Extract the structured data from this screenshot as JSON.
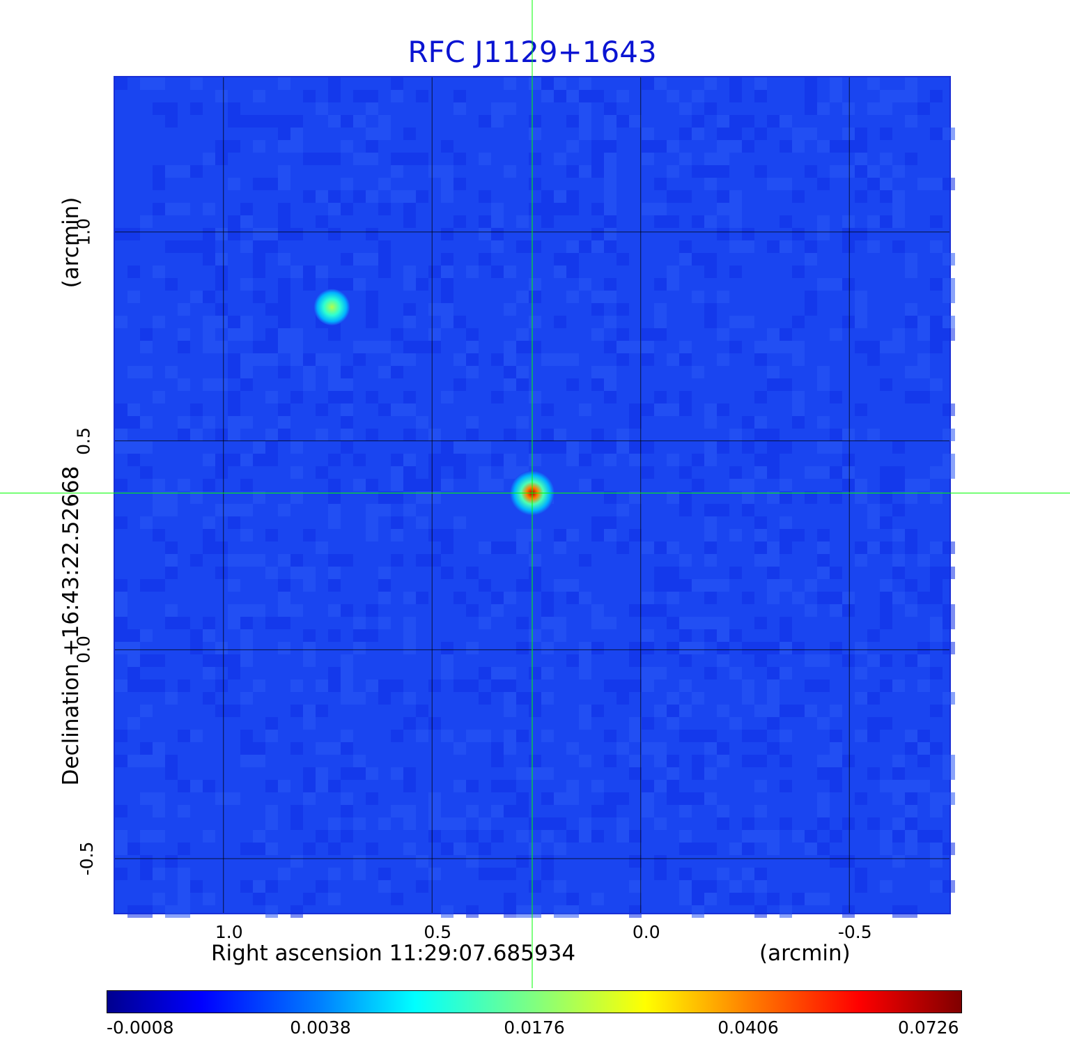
{
  "chart_data": {
    "type": "heatmap",
    "title": "RFC J1129+1643",
    "xlabel": "Right ascension  11:29:07.685934",
    "xunit": "(arcmin)",
    "ylabel": "Declination  +16:43:22.52668",
    "yunit": "(arcmin)",
    "xlim": [
      1.26,
      -0.74
    ],
    "ylim": [
      -0.63,
      1.37
    ],
    "xticks": [
      "1.0",
      "0.5",
      "0.0",
      "-0.5"
    ],
    "xtick_values": [
      1.0,
      0.5,
      0.0,
      -0.5
    ],
    "yticks": [
      "1.0",
      "0.5",
      "0.0",
      "-0.5"
    ],
    "ytick_values": [
      1.0,
      0.5,
      0.0,
      -0.5
    ],
    "grid": true,
    "crosshair": {
      "x": 0.26,
      "y": 0.375,
      "color": "#00ff00"
    },
    "background_color": "#1a45f0",
    "sources": [
      {
        "x": 0.26,
        "y": 0.375,
        "peak": 0.0726,
        "description": "bright central source"
      },
      {
        "x": 0.74,
        "y": 0.82,
        "peak": 0.0176,
        "description": "fainter source"
      }
    ],
    "colorbar": {
      "ticks": [
        "-0.0008",
        "0.0038",
        "0.0176",
        "0.0406",
        "0.0726"
      ],
      "colormap": "jet"
    }
  }
}
